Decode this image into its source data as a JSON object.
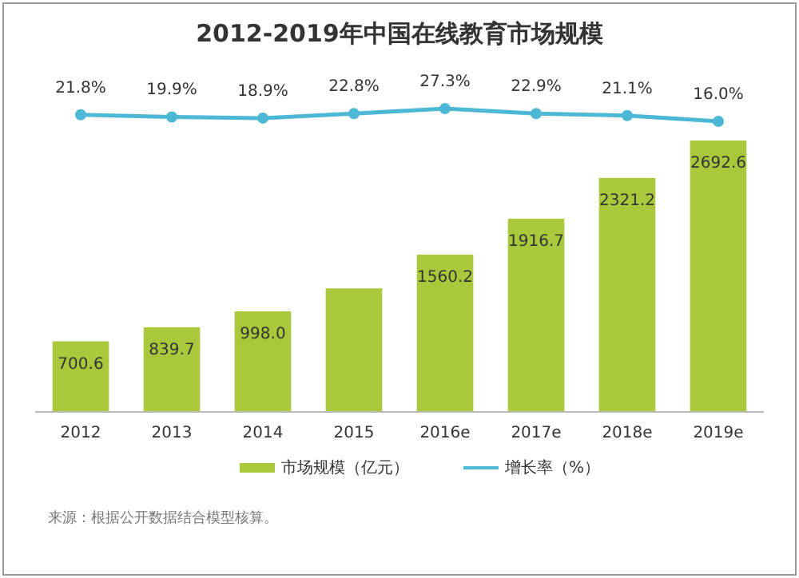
{
  "chart_data": [
    {
      "type": "line",
      "title": "2012-2019年中国在线教育市场规模",
      "categories": [
        null,
        null,
        null,
        null,
        null,
        null,
        null,
        null
      ],
      "series": [
        {
          "name": "增长率（%）",
          "color": "#4db8d6",
          "values": [
            21.8,
            19.9,
            18.9,
            22.8,
            27.3,
            22.9,
            21.1,
            16.0
          ],
          "value_labels": [
            "21.8%",
            "19.9%",
            "18.9%",
            "22.8%",
            "27.3%",
            "22.9%",
            "21.1%",
            "16.0%"
          ]
        }
      ],
      "legend": "bottom",
      "marker": "circle"
    },
    {
      "type": "bar",
      "categories": [
        "2012",
        "2013",
        "2014",
        "2015",
        "2016e",
        "2017e",
        "2018e",
        "2019e"
      ],
      "series": [
        {
          "name": "市场规模（亿元）",
          "color": "#a9c83b",
          "values": [
            700.6,
            839.7,
            998.0,
            1225.6,
            1560.2,
            1916.7,
            2321.2,
            2692.6
          ],
          "value_labels": [
            "700.6",
            "839.7",
            "998.0",
            null,
            "1560.2",
            "1916.7",
            "2321.2",
            "2692.6"
          ]
        }
      ],
      "legend": "bottom",
      "annotations": [
        "来源：根据公开数据结合模型核算。"
      ]
    }
  ]
}
